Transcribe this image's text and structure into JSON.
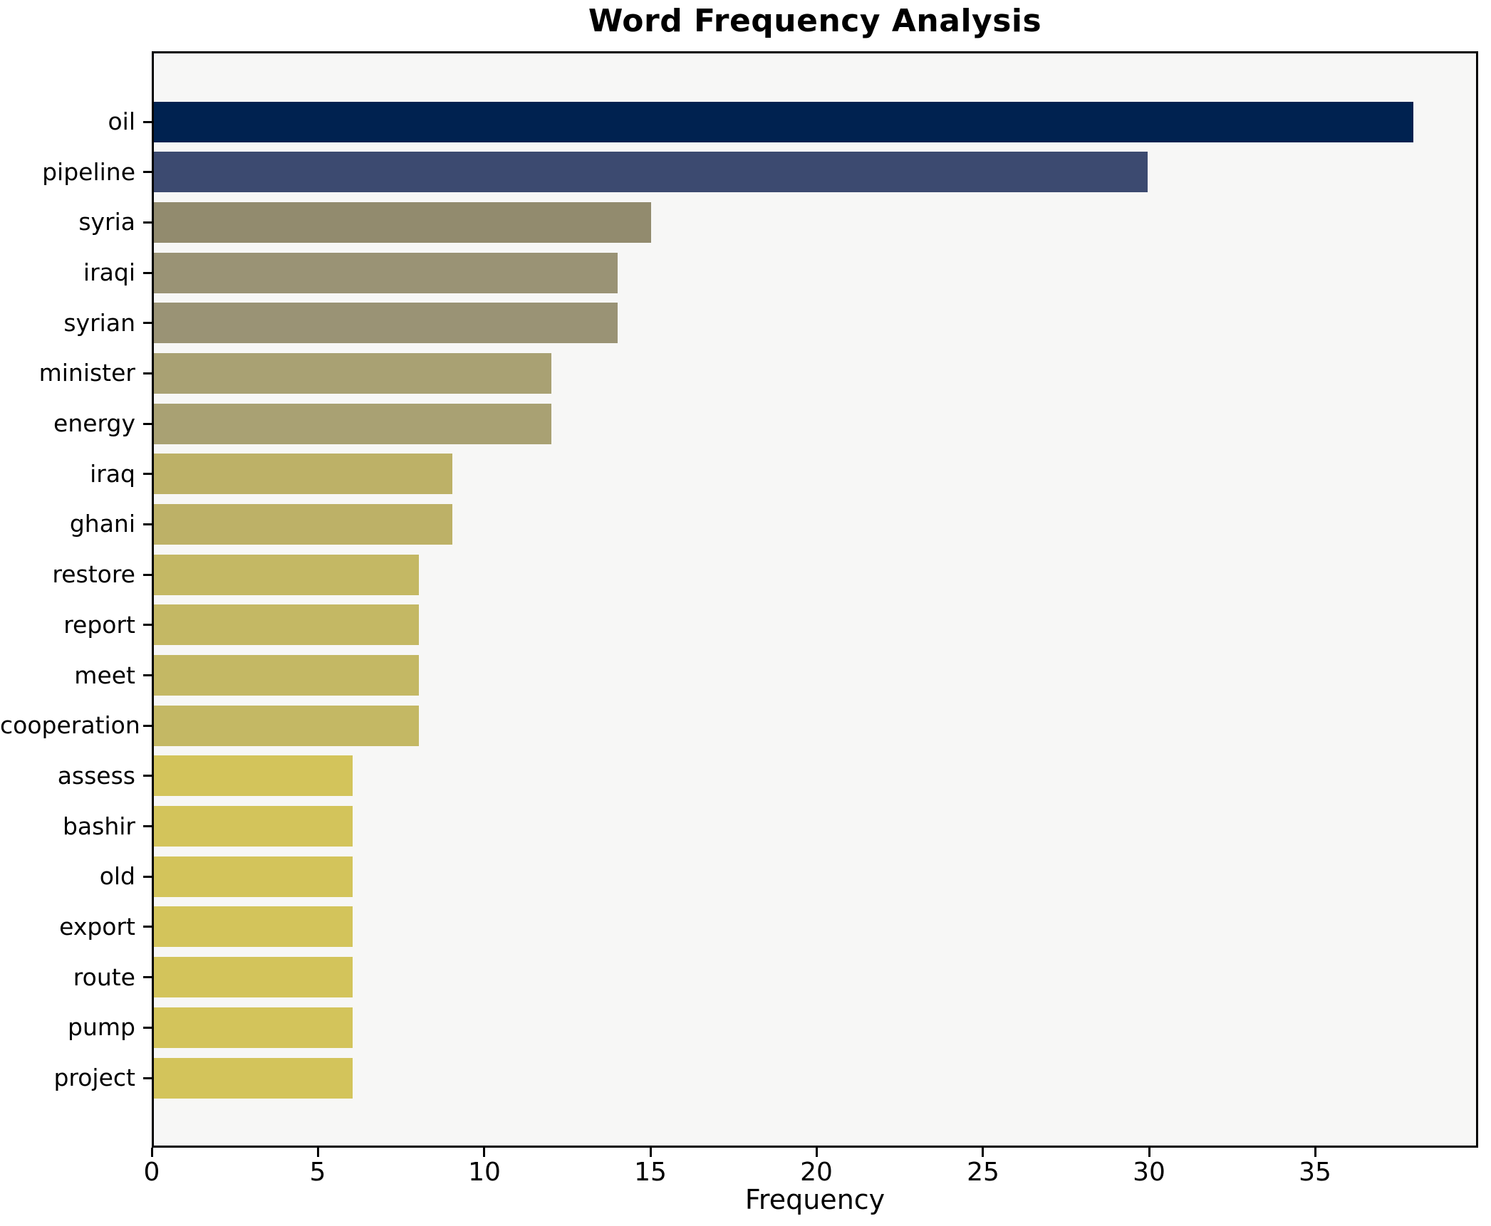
{
  "chart_data": {
    "type": "bar",
    "orientation": "horizontal",
    "title": "Word Frequency Analysis",
    "xlabel": "Frequency",
    "ylabel": "",
    "categories": [
      "oil",
      "pipeline",
      "syria",
      "iraqi",
      "syrian",
      "minister",
      "energy",
      "iraq",
      "ghani",
      "restore",
      "report",
      "meet",
      "cooperation",
      "assess",
      "bashir",
      "old",
      "export",
      "route",
      "pump",
      "project"
    ],
    "values": [
      38,
      30,
      15,
      14,
      14,
      12,
      12,
      9,
      9,
      8,
      8,
      8,
      8,
      6,
      6,
      6,
      6,
      6,
      6,
      6
    ],
    "xlim": [
      0,
      39.9
    ],
    "xticks": [
      0,
      5,
      10,
      15,
      20,
      25,
      30,
      35
    ],
    "grid": false,
    "legend": false,
    "bar_colors": [
      "#002250",
      "#3c4a70",
      "#928b6e",
      "#9a9375",
      "#9a9375",
      "#a9a173",
      "#a9a173",
      "#bdb167",
      "#bdb167",
      "#c4b864",
      "#c4b864",
      "#c4b864",
      "#c4b864",
      "#d3c45b",
      "#d3c45b",
      "#d3c45b",
      "#d3c45b",
      "#d3c45b",
      "#d3c45b",
      "#d3c45b"
    ],
    "plot_bg": "#f7f7f6",
    "figure_bg": "#ffffff",
    "frame_color": "#000000"
  }
}
